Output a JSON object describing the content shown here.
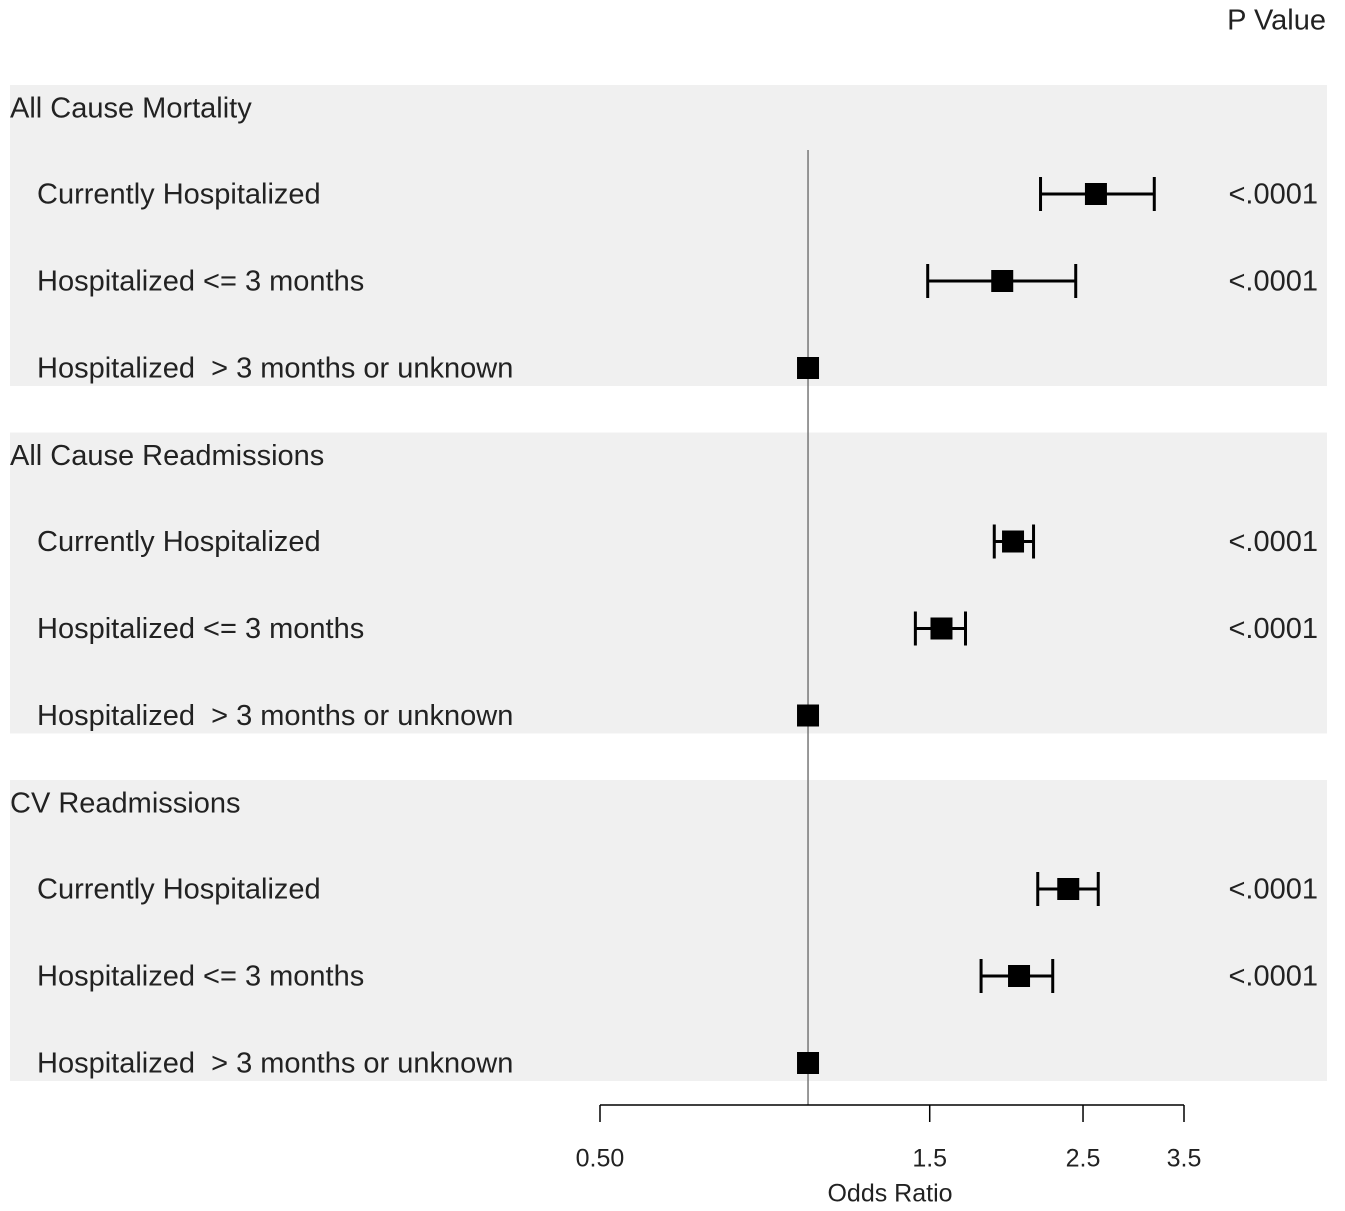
{
  "chart_data": {
    "type": "forest",
    "p_value_header": "P Value",
    "x_label": "Odds Ratio",
    "log_scale": true,
    "xlim": [
      0.5,
      3.5
    ],
    "xticks": [
      {
        "value": 0.5,
        "label": "0.50"
      },
      1.5,
      2.5,
      3.5
    ],
    "reference_line": 1,
    "color": "#000000",
    "band_color": "#f0f0f0",
    "groups": [
      {
        "name": "All Cause Mortality",
        "rows": [
          {
            "label": "Currently Hospitalized",
            "estimate": 2.61,
            "lower": 2.17,
            "upper": 3.17,
            "p_value": "<.0001"
          },
          {
            "label": "Hospitalized <= 3 months",
            "estimate": 1.91,
            "lower": 1.49,
            "upper": 2.44,
            "p_value": "<.0001"
          },
          {
            "label": "Hospitalized  > 3 months or unknown",
            "estimate": 1.0,
            "lower": null,
            "upper": null,
            "p_value": null
          }
        ]
      },
      {
        "name": "All Cause Readmissions",
        "rows": [
          {
            "label": "Currently Hospitalized",
            "estimate": 1.98,
            "lower": 1.86,
            "upper": 2.12,
            "p_value": "<.0001"
          },
          {
            "label": "Hospitalized <= 3 months",
            "estimate": 1.56,
            "lower": 1.43,
            "upper": 1.69,
            "p_value": "<.0001"
          },
          {
            "label": "Hospitalized  > 3 months or unknown",
            "estimate": 1.0,
            "lower": null,
            "upper": null,
            "p_value": null
          }
        ]
      },
      {
        "name": "CV Readmissions",
        "rows": [
          {
            "label": "Currently Hospitalized",
            "estimate": 2.38,
            "lower": 2.15,
            "upper": 2.63,
            "p_value": "<.0001"
          },
          {
            "label": "Hospitalized <= 3 months",
            "estimate": 2.02,
            "lower": 1.78,
            "upper": 2.26,
            "p_value": "<.0001"
          },
          {
            "label": "Hospitalized  > 3 months or unknown",
            "estimate": 1.0,
            "lower": null,
            "upper": null,
            "p_value": null
          }
        ]
      }
    ]
  }
}
